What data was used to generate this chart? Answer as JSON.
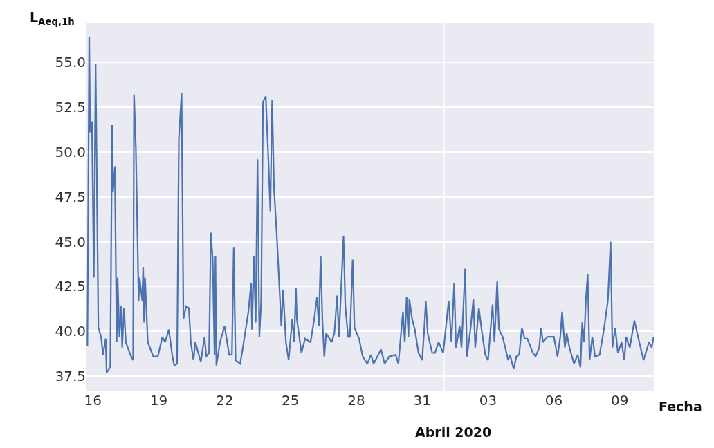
{
  "chart_data": {
    "type": "line",
    "xlabel": "Fecha",
    "ylabel": "L$_{Aeq,1h}$",
    "annotations": [
      "Abril 2020"
    ],
    "color": "#4c72b0",
    "grid": "y",
    "legend": false,
    "marker": "none",
    "line_style": "solid",
    "xlim": [
      "2020-03-15T17:00",
      "2020-04-10T14:00"
    ],
    "ylim": [
      36.7,
      57.2
    ],
    "xticks": [
      {
        "value": "2020-03-16",
        "label": "16"
      },
      {
        "value": "2020-03-19",
        "label": "19"
      },
      {
        "value": "2020-03-22",
        "label": "22"
      },
      {
        "value": "2020-03-25",
        "label": "25"
      },
      {
        "value": "2020-03-28",
        "label": "28"
      },
      {
        "value": "2020-03-31",
        "label": "31"
      },
      {
        "value": "2020-04-03",
        "label": "03"
      },
      {
        "value": "2020-04-06",
        "label": "06"
      },
      {
        "value": "2020-04-09",
        "label": "09"
      }
    ],
    "yticks": [
      {
        "value": 37.5,
        "label": "37.5"
      },
      {
        "value": 40,
        "label": "40.0"
      },
      {
        "value": 42.5,
        "label": "42.5"
      },
      {
        "value": 45,
        "label": "45.0"
      },
      {
        "value": 47.5,
        "label": "47.5"
      },
      {
        "value": 50,
        "label": "50.0"
      },
      {
        "value": 52.5,
        "label": "52.5"
      },
      {
        "value": 55,
        "label": "55.0"
      }
    ],
    "ref_lines": [
      {
        "axis": "x",
        "value": "2020-04-01",
        "color": "#ffffff"
      }
    ],
    "x": [
      "2020-03-15T18:00",
      "2020-03-15T20:00",
      "2020-03-15T21:00",
      "2020-03-15T23:00",
      "2020-03-16T01:00",
      "2020-03-16T03:00",
      "2020-03-16T06:00",
      "2020-03-16T09:00",
      "2020-03-16T11:00",
      "2020-03-16T14:00",
      "2020-03-16T15:00",
      "2020-03-16T19:00",
      "2020-03-16T21:00",
      "2020-03-16T22:00",
      "2020-03-17T00:00",
      "2020-03-17T02:00",
      "2020-03-17T03:00",
      "2020-03-17T05:00",
      "2020-03-17T07:00",
      "2020-03-17T08:00",
      "2020-03-17T10:00",
      "2020-03-17T12:00",
      "2020-03-17T17:00",
      "2020-03-17T20:00",
      "2020-03-17T21:00",
      "2020-03-17T23:00",
      "2020-03-18T02:00",
      "2020-03-18T03:00",
      "2020-03-18T06:00",
      "2020-03-18T07:00",
      "2020-03-18T08:00",
      "2020-03-18T09:00",
      "2020-03-18T12:00",
      "2020-03-18T18:00",
      "2020-03-18T23:00",
      "2020-03-19T04:00",
      "2020-03-19T07:00",
      "2020-03-19T11:00",
      "2020-03-19T15:00",
      "2020-03-19T17:00",
      "2020-03-19T20:00",
      "2020-03-19T22:00",
      "2020-03-20T01:00",
      "2020-03-20T03:00",
      "2020-03-20T06:00",
      "2020-03-20T09:00",
      "2020-03-20T11:00",
      "2020-03-20T14:00",
      "2020-03-20T16:00",
      "2020-03-20T22:00",
      "2020-03-21T02:00",
      "2020-03-21T04:00",
      "2020-03-21T07:00",
      "2020-03-21T09:00",
      "2020-03-21T11:00",
      "2020-03-21T13:00",
      "2020-03-21T14:00",
      "2020-03-21T15:00",
      "2020-03-21T19:00",
      "2020-03-22T00:00",
      "2020-03-22T05:00",
      "2020-03-22T08:00",
      "2020-03-22T10:00",
      "2020-03-22T12:00",
      "2020-03-22T17:00",
      "2020-03-22T20:00",
      "2020-03-23T02:00",
      "2020-03-23T05:00",
      "2020-03-23T06:00",
      "2020-03-23T08:00",
      "2020-03-23T10:00",
      "2020-03-23T12:00",
      "2020-03-23T14:00",
      "2020-03-23T16:00",
      "2020-03-23T18:00",
      "2020-03-23T21:00",
      "2020-03-24T00:00",
      "2020-03-24T02:00",
      "2020-03-24T04:00",
      "2020-03-24T06:00",
      "2020-03-24T09:00",
      "2020-03-24T11:00",
      "2020-03-24T14:00",
      "2020-03-24T16:00",
      "2020-03-24T19:00",
      "2020-03-24T22:00",
      "2020-03-25T02:00",
      "2020-03-25T04:00",
      "2020-03-25T06:00",
      "2020-03-25T07:00",
      "2020-03-25T12:00",
      "2020-03-25T16:00",
      "2020-03-25T22:00",
      "2020-03-26T02:00",
      "2020-03-26T05:00",
      "2020-03-26T07:00",
      "2020-03-26T09:00",
      "2020-03-26T11:00",
      "2020-03-26T13:00",
      "2020-03-26T15:00",
      "2020-03-26T21:00",
      "2020-03-27T00:00",
      "2020-03-27T03:00",
      "2020-03-27T05:00",
      "2020-03-27T07:00",
      "2020-03-27T10:00",
      "2020-03-27T12:00",
      "2020-03-27T15:00",
      "2020-03-27T17:00",
      "2020-03-27T20:00",
      "2020-03-27T22:00",
      "2020-03-28T03:00",
      "2020-03-28T07:00",
      "2020-03-28T12:00",
      "2020-03-28T16:00",
      "2020-03-28T19:00",
      "2020-03-28T23:00",
      "2020-03-29T03:00",
      "2020-03-29T07:00",
      "2020-03-29T12:00",
      "2020-03-29T19:00",
      "2020-03-29T22:00",
      "2020-03-30T03:00",
      "2020-03-30T05:00",
      "2020-03-30T07:00",
      "2020-03-30T09:00",
      "2020-03-30T10:00",
      "2020-03-30T13:00",
      "2020-03-30T16:00",
      "2020-03-30T20:00",
      "2020-03-31T00:00",
      "2020-03-31T02:00",
      "2020-03-31T04:00",
      "2020-03-31T06:00",
      "2020-03-31T11:00",
      "2020-03-31T14:00",
      "2020-03-31T18:00",
      "2020-03-31T23:00",
      "2020-04-01T05:00",
      "2020-04-01T08:00",
      "2020-04-01T11:00",
      "2020-04-01T13:00",
      "2020-04-01T17:00",
      "2020-04-01T19:00",
      "2020-04-01T23:00",
      "2020-04-02T01:00",
      "2020-04-02T05:00",
      "2020-04-02T08:00",
      "2020-04-02T10:00",
      "2020-04-02T14:00",
      "2020-04-02T17:00",
      "2020-04-02T21:00",
      "2020-04-03T00:00",
      "2020-04-03T05:00",
      "2020-04-03T07:00",
      "2020-04-03T10:00",
      "2020-04-03T12:00",
      "2020-04-03T16:00",
      "2020-04-03T22:00",
      "2020-04-04T00:00",
      "2020-04-04T04:00",
      "2020-04-04T07:00",
      "2020-04-04T10:00",
      "2020-04-04T13:00",
      "2020-04-04T16:00",
      "2020-04-04T19:00",
      "2020-04-05T01:00",
      "2020-04-05T04:00",
      "2020-04-05T08:00",
      "2020-04-05T10:00",
      "2020-04-05T12:00",
      "2020-04-05T17:00",
      "2020-04-06T00:00",
      "2020-04-06T04:00",
      "2020-04-06T07:00",
      "2020-04-06T09:00",
      "2020-04-06T12:00",
      "2020-04-06T14:00",
      "2020-04-06T17:00",
      "2020-04-06T22:00",
      "2020-04-07T02:00",
      "2020-04-07T05:00",
      "2020-04-07T07:00",
      "2020-04-07T09:00",
      "2020-04-07T11:00",
      "2020-04-07T13:00",
      "2020-04-07T15:00",
      "2020-04-07T18:00",
      "2020-04-07T21:00",
      "2020-04-08T02:00",
      "2020-04-08T07:00",
      "2020-04-08T11:00",
      "2020-04-08T14:00",
      "2020-04-08T16:00",
      "2020-04-08T19:00",
      "2020-04-08T22:00",
      "2020-04-09T02:00",
      "2020-04-09T05:00",
      "2020-04-09T07:00",
      "2020-04-09T11:00",
      "2020-04-09T16:00",
      "2020-04-09T20:00",
      "2020-04-10T02:00",
      "2020-04-10T08:00",
      "2020-04-10T11:00",
      "2020-04-10T13:00"
    ],
    "values": [
      39.2,
      56.4,
      51.1,
      51.7,
      43.0,
      54.9,
      40.2,
      39.7,
      38.7,
      39.6,
      37.7,
      38.0,
      51.5,
      47.8,
      49.2,
      39.4,
      43.0,
      39.7,
      41.4,
      39.1,
      41.3,
      39.4,
      38.7,
      38.4,
      53.2,
      50.2,
      41.7,
      43.0,
      41.7,
      43.6,
      40.5,
      43.0,
      39.4,
      38.6,
      38.6,
      39.7,
      39.4,
      40.1,
      38.6,
      38.1,
      38.2,
      50.7,
      53.3,
      40.7,
      41.4,
      41.3,
      39.4,
      38.4,
      39.4,
      38.3,
      39.7,
      38.6,
      38.8,
      45.5,
      44.0,
      38.7,
      44.2,
      38.1,
      39.4,
      40.3,
      38.7,
      38.7,
      44.7,
      38.4,
      38.2,
      39.1,
      41.1,
      42.7,
      40.1,
      44.2,
      40.5,
      49.6,
      39.7,
      41.7,
      52.8,
      53.1,
      49.4,
      46.7,
      52.9,
      48.0,
      45.4,
      43.4,
      40.3,
      42.3,
      39.4,
      38.4,
      40.7,
      39.4,
      42.4,
      40.7,
      38.8,
      39.6,
      39.4,
      40.7,
      41.9,
      40.3,
      44.2,
      40.5,
      38.6,
      39.9,
      39.4,
      39.9,
      42.0,
      39.7,
      41.9,
      45.3,
      41.4,
      39.7,
      39.7,
      44.0,
      40.2,
      39.6,
      38.6,
      38.2,
      38.7,
      38.2,
      38.6,
      39.0,
      38.2,
      38.6,
      38.7,
      38.2,
      41.1,
      39.4,
      41.9,
      39.7,
      41.8,
      40.7,
      40.1,
      38.8,
      38.4,
      39.9,
      41.7,
      39.9,
      38.8,
      38.8,
      39.4,
      38.8,
      41.7,
      39.4,
      42.7,
      39.1,
      40.3,
      39.1,
      43.5,
      38.6,
      40.2,
      41.8,
      39.1,
      41.3,
      40.1,
      38.7,
      38.4,
      41.5,
      39.4,
      42.8,
      40.1,
      39.7,
      38.4,
      38.7,
      37.9,
      38.6,
      38.7,
      40.2,
      39.6,
      39.6,
      38.8,
      38.6,
      39.1,
      40.2,
      39.4,
      39.7,
      39.7,
      38.6,
      39.7,
      41.1,
      39.1,
      39.9,
      39.1,
      38.2,
      38.7,
      38.0,
      40.5,
      39.4,
      41.8,
      43.2,
      38.4,
      39.7,
      38.6,
      38.7,
      40.2,
      41.7,
      45.0,
      39.1,
      40.2,
      38.8,
      39.4,
      38.4,
      39.7,
      39.1,
      40.6,
      39.7,
      38.4,
      39.4,
      39.1,
      39.7
    ]
  }
}
